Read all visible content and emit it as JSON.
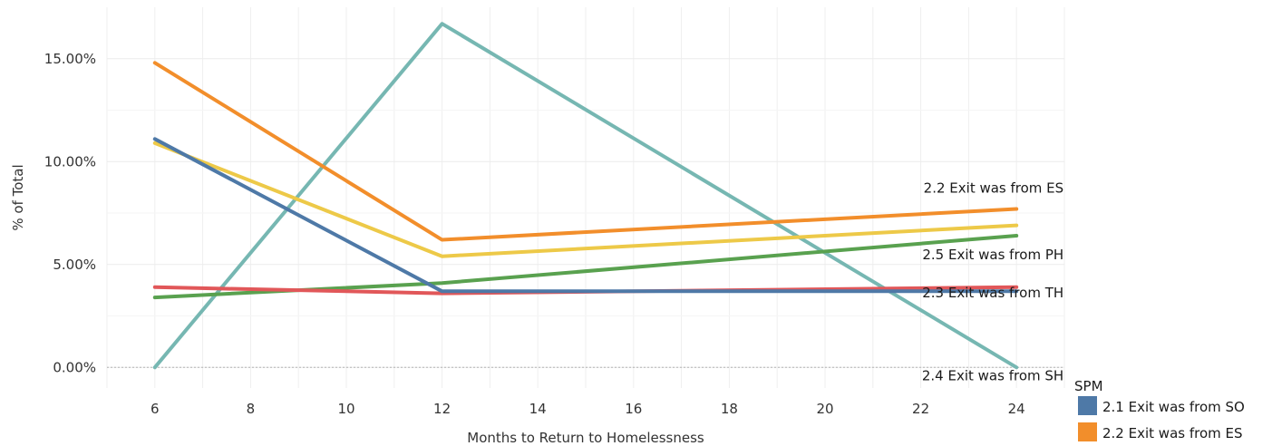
{
  "chart_data": {
    "type": "line",
    "xlabel": "Months to Return to Homelessness",
    "ylabel": "% of Total",
    "xlim": [
      5,
      25
    ],
    "ylim": [
      -1,
      17.5
    ],
    "x_ticks": [
      6,
      8,
      10,
      12,
      14,
      16,
      18,
      20,
      22,
      24
    ],
    "y_ticks": [
      0,
      5,
      10,
      15
    ],
    "y_tick_labels": [
      "0.00%",
      "5.00%",
      "10.00%",
      "15.00%"
    ],
    "grid": true,
    "legend_title": "SPM",
    "legend_placement": "bottom-right",
    "series": [
      {
        "name": "2.1 Exit was from SO",
        "color": "#4e79a7",
        "x": [
          6,
          12,
          24
        ],
        "values": [
          11.1,
          3.7,
          3.7
        ]
      },
      {
        "name": "2.2 Exit was from ES",
        "color": "#f28e2b",
        "x": [
          6,
          12,
          24
        ],
        "values": [
          14.8,
          6.2,
          7.7
        ]
      },
      {
        "name": "2.3 Exit was from TH",
        "color": "#e15759",
        "x": [
          6,
          12,
          24
        ],
        "values": [
          3.9,
          3.6,
          3.9
        ]
      },
      {
        "name": "2.4 Exit was from SH",
        "color": "#76b7b2",
        "x": [
          6,
          12,
          24
        ],
        "values": [
          0.0,
          16.7,
          0.0
        ]
      },
      {
        "name": "2.5 Exit was from PH",
        "color": "#59a14f",
        "x": [
          6,
          12,
          24
        ],
        "values": [
          3.4,
          4.1,
          6.4
        ]
      },
      {
        "name": "",
        "color": "#edc948",
        "x": [
          6,
          12,
          24
        ],
        "values": [
          10.9,
          5.4,
          6.9
        ]
      }
    ],
    "end_labels": [
      {
        "text": "2.2 Exit was from ES",
        "series": 1
      },
      {
        "text": "2.5 Exit was from PH",
        "series": 4
      },
      {
        "text": "2.3 Exit was from TH",
        "series": 2
      },
      {
        "text": "2.4 Exit was from SH",
        "series": 3
      }
    ],
    "legend_entries": [
      {
        "label": "2.1 Exit was from SO",
        "color": "#4e79a7"
      },
      {
        "label": "2.2 Exit was from ES",
        "color": "#f28e2b"
      }
    ]
  }
}
